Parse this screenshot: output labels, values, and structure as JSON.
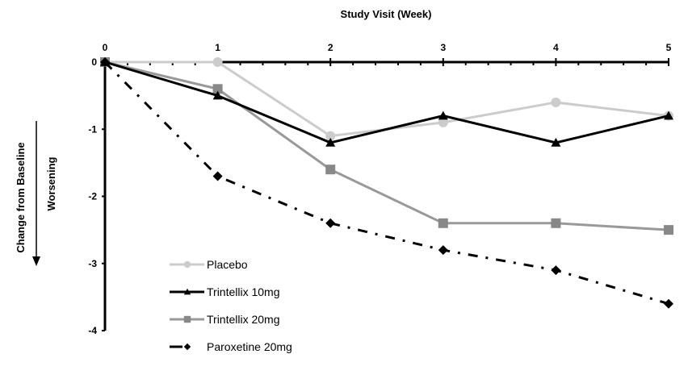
{
  "chart_data": {
    "type": "line",
    "title": "Study Visit (Week)",
    "xlabel": "Study Visit (Week)",
    "ylabel": "Change from Baseline",
    "ylabel_annotation": "Worsening",
    "x": [
      0,
      1,
      2,
      3,
      4,
      5
    ],
    "x_tick_labels": [
      "0",
      "1",
      "2",
      "3",
      "4",
      "5"
    ],
    "y_tick_values": [
      0,
      -1,
      -2,
      -3,
      -4
    ],
    "y_tick_labels": [
      "0",
      "-1",
      "-2",
      "-3",
      "-4"
    ],
    "xlim": [
      0,
      5
    ],
    "ylim": [
      -4,
      0
    ],
    "x_axis_position": "top",
    "grid": false,
    "legend_position": "bottom-left",
    "series": [
      {
        "name": "Placebo",
        "values": [
          0,
          0,
          -1.1,
          -0.9,
          -0.6,
          -0.8
        ],
        "color": "#cccccc",
        "marker": "circle",
        "line_style": "solid"
      },
      {
        "name": "Trintellix 10mg",
        "values": [
          0,
          -0.5,
          -1.2,
          -0.8,
          -1.2,
          -0.8
        ],
        "color": "#000000",
        "marker": "triangle",
        "line_style": "solid"
      },
      {
        "name": "Trintellix 20mg",
        "values": [
          0,
          -0.4,
          -1.6,
          -2.4,
          -2.4,
          -2.5
        ],
        "color": "#999999",
        "marker": "square",
        "line_style": "solid"
      },
      {
        "name": "Paroxetine 20mg",
        "values": [
          0,
          -1.7,
          -2.4,
          -2.8,
          -3.1,
          -3.6
        ],
        "color": "#000000",
        "marker": "diamond",
        "line_style": "dash-dot"
      }
    ]
  }
}
